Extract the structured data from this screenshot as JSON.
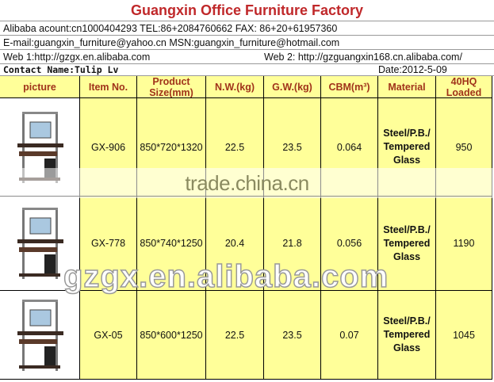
{
  "title": "Guangxin Office Furniture  Factory",
  "contact": {
    "line1": "Alibaba acount:cn1000404293   TEL:86+2084760662  FAX: 86+20+61957360",
    "line2": "E-mail:guangxin_furniture@yahoo.cn  MSN:guangxin_furniture@hotmail.com",
    "web1": "Web 1:http://gzgx.en.alibaba.com",
    "web2": "Web 2: http://gzguangxin168.cn.alibaba.com/",
    "contact_name": "Contact Name:Tulip Lv",
    "date": "Date:2012-5-09"
  },
  "table": {
    "headers": [
      "picture",
      "Item No.",
      "Product Size(mm)",
      "N.W.(kg)",
      "G.W.(kg)",
      "CBM(m³)",
      "Material",
      "40HQ Loaded"
    ],
    "rows": [
      {
        "item": "GX-906",
        "size": "850*720*1320",
        "nw": "22.5",
        "gw": "23.5",
        "cbm": "0.064",
        "material": "Steel/P.B./ Tempered Glass",
        "loaded": "950"
      },
      {
        "item": "GX-778",
        "size": "850*740*1250",
        "nw": "20.4",
        "gw": "21.8",
        "cbm": "0.056",
        "material": "Steel/P.B./ Tempered Glass",
        "loaded": "1190"
      },
      {
        "item": "GX-05",
        "size": "850*600*1250",
        "nw": "22.5",
        "gw": "23.5",
        "cbm": "0.07",
        "material": "Steel/P.B./ Tempered Glass",
        "loaded": "1045"
      }
    ]
  },
  "watermarks": [
    "trade.china.cn",
    "gzgx.en.alibaba.com"
  ],
  "colors": {
    "title": "#c0282a",
    "header_text": "#a0331a",
    "cell_bg": "#ffff99"
  }
}
